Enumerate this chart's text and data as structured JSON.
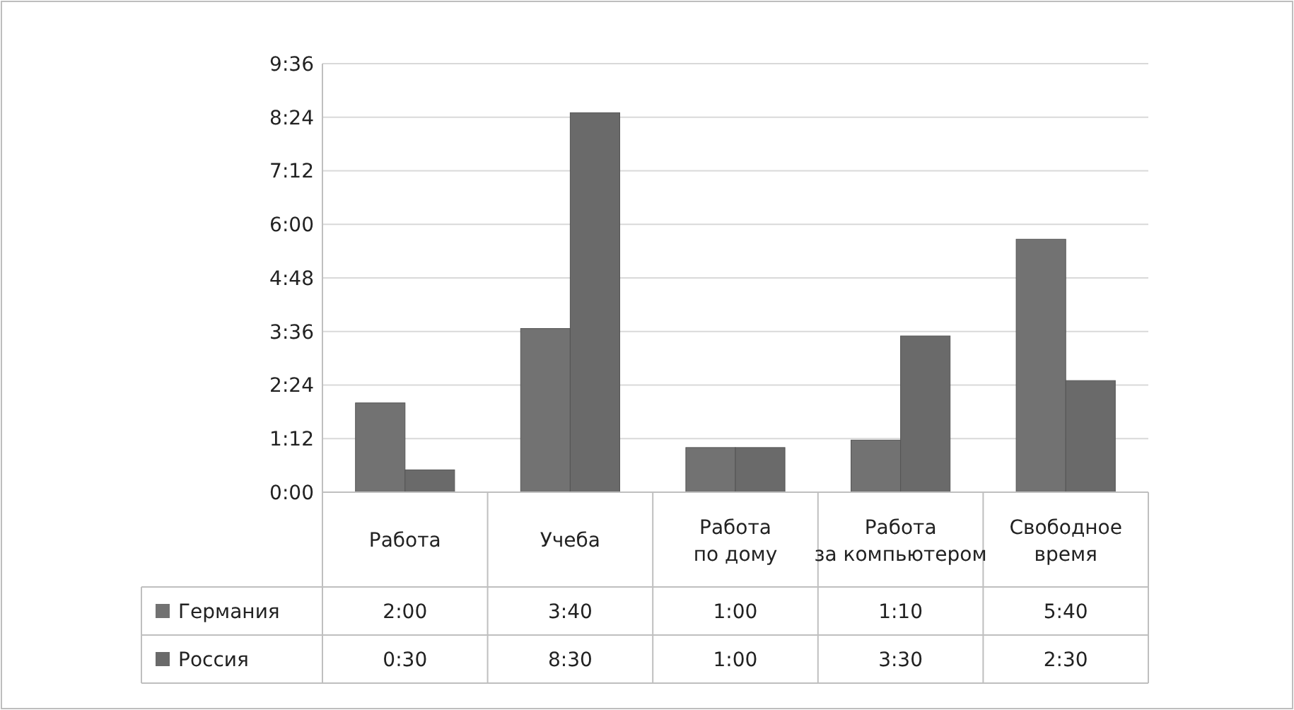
{
  "chart_data": {
    "type": "bar",
    "categories": [
      "Работа",
      "Учеба",
      "Работа по дому",
      "Работа за компьютером",
      "Свободное время"
    ],
    "series": [
      {
        "name": "Германия",
        "color": "#727272",
        "values": [
          2,
          3.6667,
          1,
          1.1667,
          5.6667
        ],
        "value_labels": [
          "2:00",
          "3:40",
          "1:00",
          "1:10",
          "5:40"
        ]
      },
      {
        "name": "Россия",
        "color": "#6a6a6a",
        "values": [
          0.5,
          8.5,
          1,
          3.5,
          2.5
        ],
        "value_labels": [
          "0:30",
          "8:30",
          "1:00",
          "3:30",
          "2:30"
        ]
      }
    ],
    "ylim": [
      0,
      9.6
    ],
    "yticks": [
      {
        "value": 0,
        "label": "0:00"
      },
      {
        "value": 1.2,
        "label": "1:12"
      },
      {
        "value": 2.4,
        "label": "2:24"
      },
      {
        "value": 3.6,
        "label": "3:36"
      },
      {
        "value": 4.8,
        "label": "4:48"
      },
      {
        "value": 6,
        "label": "6:00"
      },
      {
        "value": 7.2,
        "label": "7:12"
      },
      {
        "value": 8.4,
        "label": "8:24"
      },
      {
        "value": 9.6,
        "label": "9:36"
      }
    ],
    "grid": "y",
    "legend": "bottom left"
  }
}
